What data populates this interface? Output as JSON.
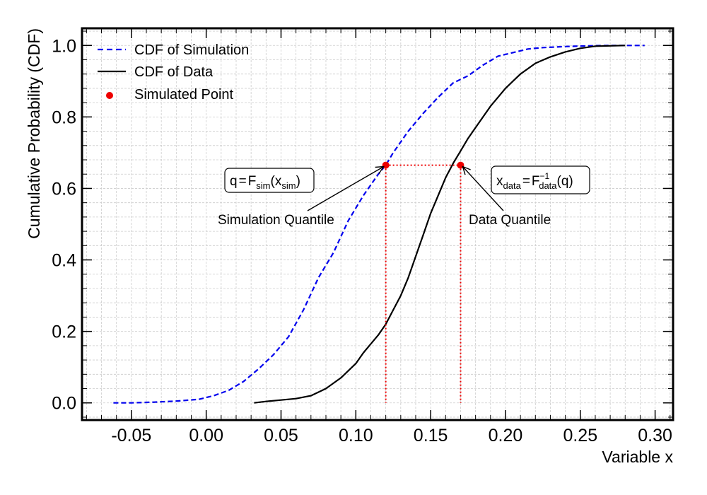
{
  "chart_data": {
    "type": "line",
    "title": "",
    "xlabel": "Variable x",
    "ylabel": "Cumulative Probability (CDF)",
    "xlim": [
      -0.083,
      0.312
    ],
    "ylim": [
      -0.048,
      1.048
    ],
    "grid": true,
    "legend_position": "top-left",
    "x_ticks": [
      "-0.05",
      "0.00",
      "0.05",
      "0.10",
      "0.15",
      "0.20",
      "0.25",
      "0.30"
    ],
    "x_tick_values": [
      -0.05,
      0.0,
      0.05,
      0.1,
      0.15,
      0.2,
      0.25,
      0.3
    ],
    "y_ticks": [
      "0.0",
      "0.2",
      "0.4",
      "0.6",
      "0.8",
      "1.0"
    ],
    "y_tick_values": [
      0.0,
      0.2,
      0.4,
      0.6,
      0.8,
      1.0
    ],
    "series": [
      {
        "name": "CDF of Simulation",
        "style": "dashed",
        "color": "#0000ee",
        "x": [
          -0.062,
          -0.05,
          -0.035,
          -0.02,
          -0.005,
          0.005,
          0.015,
          0.025,
          0.035,
          0.045,
          0.055,
          0.065,
          0.075,
          0.085,
          0.095,
          0.105,
          0.115,
          0.12,
          0.125,
          0.135,
          0.145,
          0.155,
          0.165,
          0.175,
          0.185,
          0.195,
          0.205,
          0.215,
          0.225,
          0.24,
          0.255,
          0.27,
          0.293
        ],
        "y": [
          0.0,
          0.0,
          0.002,
          0.005,
          0.01,
          0.02,
          0.035,
          0.06,
          0.095,
          0.135,
          0.185,
          0.26,
          0.35,
          0.42,
          0.51,
          0.58,
          0.64,
          0.665,
          0.7,
          0.76,
          0.81,
          0.855,
          0.895,
          0.915,
          0.945,
          0.97,
          0.98,
          0.99,
          0.994,
          0.997,
          0.999,
          1.0,
          1.0
        ]
      },
      {
        "name": "CDF of Data",
        "style": "solid",
        "color": "#000000",
        "x": [
          0.032,
          0.04,
          0.05,
          0.06,
          0.07,
          0.08,
          0.09,
          0.1,
          0.105,
          0.11,
          0.115,
          0.12,
          0.125,
          0.13,
          0.135,
          0.14,
          0.145,
          0.15,
          0.155,
          0.16,
          0.165,
          0.17,
          0.175,
          0.18,
          0.185,
          0.19,
          0.195,
          0.2,
          0.205,
          0.21,
          0.215,
          0.22,
          0.23,
          0.24,
          0.25,
          0.26,
          0.28
        ],
        "y": [
          0.0,
          0.004,
          0.008,
          0.012,
          0.02,
          0.04,
          0.07,
          0.11,
          0.14,
          0.165,
          0.19,
          0.22,
          0.26,
          0.3,
          0.35,
          0.41,
          0.47,
          0.53,
          0.58,
          0.63,
          0.67,
          0.705,
          0.74,
          0.77,
          0.8,
          0.83,
          0.855,
          0.88,
          0.9,
          0.92,
          0.935,
          0.95,
          0.968,
          0.982,
          0.992,
          0.998,
          1.0
        ]
      }
    ],
    "simulated_point": {
      "name": "Simulated Point",
      "color": "#ee0000",
      "points": [
        {
          "x": 0.12,
          "y": 0.665
        },
        {
          "x": 0.17,
          "y": 0.665
        }
      ]
    },
    "annotations": [
      {
        "text": "Simulation Quantile",
        "target_x": 0.12,
        "target_y": 0.665
      },
      {
        "text": "Data Quantile",
        "target_x": 0.17,
        "target_y": 0.665
      }
    ],
    "formula_boxes": {
      "sim": {
        "q": "q",
        "eq": "=",
        "F": "F",
        "F_sub": "sim",
        "arg_open": "(x",
        "arg_sub": "sim",
        "arg_close": ")"
      },
      "data": {
        "x": "x",
        "x_sub": "data",
        "eq": "=",
        "F": "F",
        "F_sup": "−1",
        "F_sub": "data",
        "arg": "(q)"
      }
    }
  }
}
